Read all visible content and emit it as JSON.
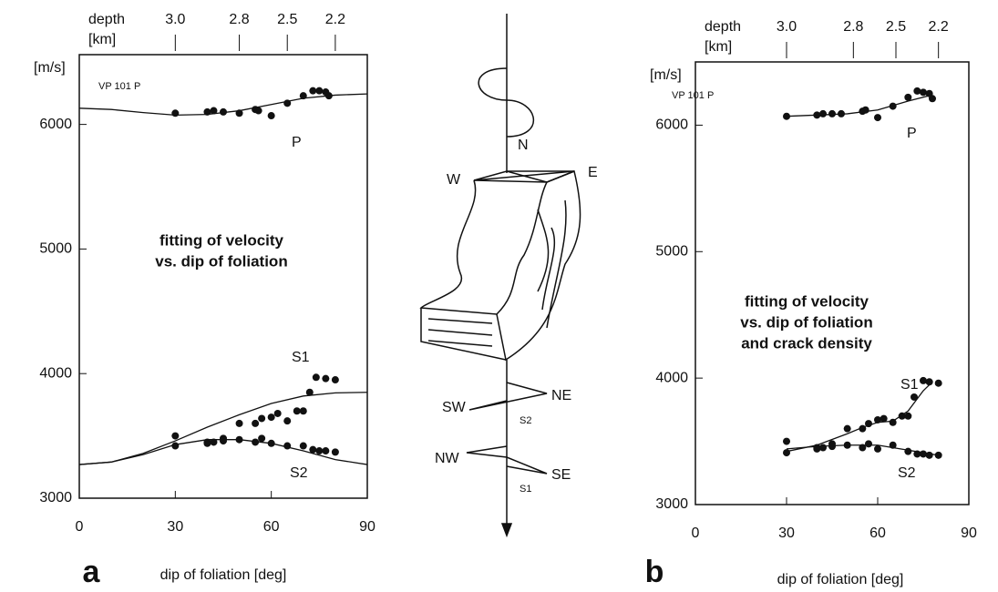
{
  "chart_data": [
    {
      "type": "scatter",
      "panel_label": "a",
      "xlabel": "dip of foliation [deg]",
      "ylabel": "[m/s]",
      "x2label": [
        "depth",
        "[km]"
      ],
      "sample_label": "VP 101 P",
      "annotation": [
        "fitting of velocity",
        "vs. dip of foliation"
      ],
      "xlim": [
        0,
        90
      ],
      "xticks": [
        0,
        30,
        60,
        90
      ],
      "ylim": [
        3000,
        6560
      ],
      "yticks": [
        3000,
        4000,
        5000,
        6000
      ],
      "x2ticks": [
        {
          "value": 30,
          "label": "3.0"
        },
        {
          "value": 50,
          "label": "2.8"
        },
        {
          "value": 65,
          "label": "2.5"
        },
        {
          "value": 80,
          "label": "2.2"
        }
      ],
      "series": [
        {
          "name": "P",
          "color": "#111111",
          "x": [
            30,
            40,
            42,
            45,
            50,
            55,
            56,
            60,
            65,
            70,
            73,
            75,
            77,
            78
          ],
          "values": [
            6090,
            6100,
            6110,
            6100,
            6090,
            6120,
            6110,
            6070,
            6170,
            6230,
            6270,
            6270,
            6260,
            6230
          ],
          "fit_x": [
            0,
            10,
            20,
            30,
            40,
            50,
            60,
            70,
            80,
            90
          ],
          "fit_values": [
            6130,
            6120,
            6095,
            6075,
            6080,
            6110,
            6160,
            6210,
            6235,
            6245
          ]
        },
        {
          "name": "S1",
          "color": "#111111",
          "x": [
            30,
            40,
            45,
            50,
            55,
            57,
            60,
            62,
            65,
            68,
            70,
            72,
            74,
            77,
            80
          ],
          "values": [
            3500,
            3450,
            3480,
            3600,
            3600,
            3640,
            3650,
            3680,
            3620,
            3700,
            3700,
            3850,
            3970,
            3960,
            3950
          ],
          "fit_x": [
            0,
            10,
            20,
            30,
            40,
            50,
            60,
            70,
            80,
            90
          ],
          "fit_values": [
            3270,
            3290,
            3360,
            3460,
            3570,
            3670,
            3760,
            3820,
            3845,
            3850
          ]
        },
        {
          "name": "S2",
          "color": "#111111",
          "x": [
            30,
            40,
            42,
            45,
            50,
            55,
            57,
            60,
            65,
            70,
            73,
            75,
            77,
            80
          ],
          "values": [
            3420,
            3440,
            3450,
            3460,
            3470,
            3450,
            3480,
            3440,
            3420,
            3420,
            3390,
            3380,
            3380,
            3370
          ],
          "fit_x": [
            0,
            10,
            20,
            30,
            40,
            50,
            60,
            70,
            80,
            90
          ],
          "fit_values": [
            3270,
            3290,
            3350,
            3430,
            3470,
            3470,
            3440,
            3380,
            3310,
            3270
          ]
        }
      ]
    },
    {
      "type": "scatter",
      "panel_label": "b",
      "xlabel": "dip of foliation [deg]",
      "ylabel": "[m/s]",
      "x2label": [
        "depth",
        "[km]"
      ],
      "sample_label": "VP 101 P",
      "annotation": [
        "fitting of velocity",
        "vs. dip of foliation",
        "and crack density"
      ],
      "xlim": [
        0,
        90
      ],
      "xticks": [
        0,
        30,
        60,
        90
      ],
      "ylim": [
        3000,
        6500
      ],
      "yticks": [
        3000,
        4000,
        5000,
        6000
      ],
      "x2ticks": [
        {
          "value": 30,
          "label": "3.0"
        },
        {
          "value": 52,
          "label": "2.8"
        },
        {
          "value": 66,
          "label": "2.5"
        },
        {
          "value": 80,
          "label": "2.2"
        }
      ],
      "series": [
        {
          "name": "P",
          "color": "#111111",
          "x": [
            30,
            40,
            42,
            45,
            48,
            55,
            56,
            60,
            65,
            70,
            73,
            75,
            77,
            78
          ],
          "values": [
            6070,
            6080,
            6090,
            6090,
            6090,
            6110,
            6120,
            6060,
            6150,
            6220,
            6270,
            6260,
            6250,
            6210
          ],
          "fit_x": [
            30,
            40,
            50,
            60,
            70,
            78
          ],
          "fit_values": [
            6070,
            6080,
            6090,
            6120,
            6190,
            6240
          ]
        },
        {
          "name": "S1",
          "color": "#111111",
          "x": [
            30,
            40,
            45,
            50,
            55,
            57,
            60,
            62,
            65,
            68,
            70,
            72,
            75,
            77,
            80
          ],
          "values": [
            3500,
            3450,
            3480,
            3600,
            3600,
            3640,
            3670,
            3680,
            3650,
            3700,
            3700,
            3850,
            3980,
            3970,
            3960
          ],
          "fit_x": [
            30,
            40,
            50,
            55,
            60,
            65,
            70,
            75,
            78
          ],
          "fit_values": [
            3420,
            3470,
            3560,
            3610,
            3650,
            3660,
            3740,
            3900,
            3970
          ]
        },
        {
          "name": "S2",
          "color": "#111111",
          "x": [
            30,
            40,
            42,
            45,
            50,
            55,
            57,
            60,
            65,
            70,
            73,
            75,
            77,
            80
          ],
          "values": [
            3410,
            3440,
            3450,
            3460,
            3470,
            3450,
            3480,
            3440,
            3470,
            3420,
            3400,
            3400,
            3390,
            3390
          ],
          "fit_x": [
            30,
            40,
            50,
            60,
            70,
            75,
            80
          ],
          "fit_values": [
            3440,
            3460,
            3470,
            3470,
            3430,
            3410,
            3390
          ]
        }
      ]
    }
  ],
  "diagram": {
    "labels": [
      "N",
      "W",
      "E",
      "SW",
      "NE",
      "S2",
      "NW",
      "SE",
      "S1"
    ]
  }
}
